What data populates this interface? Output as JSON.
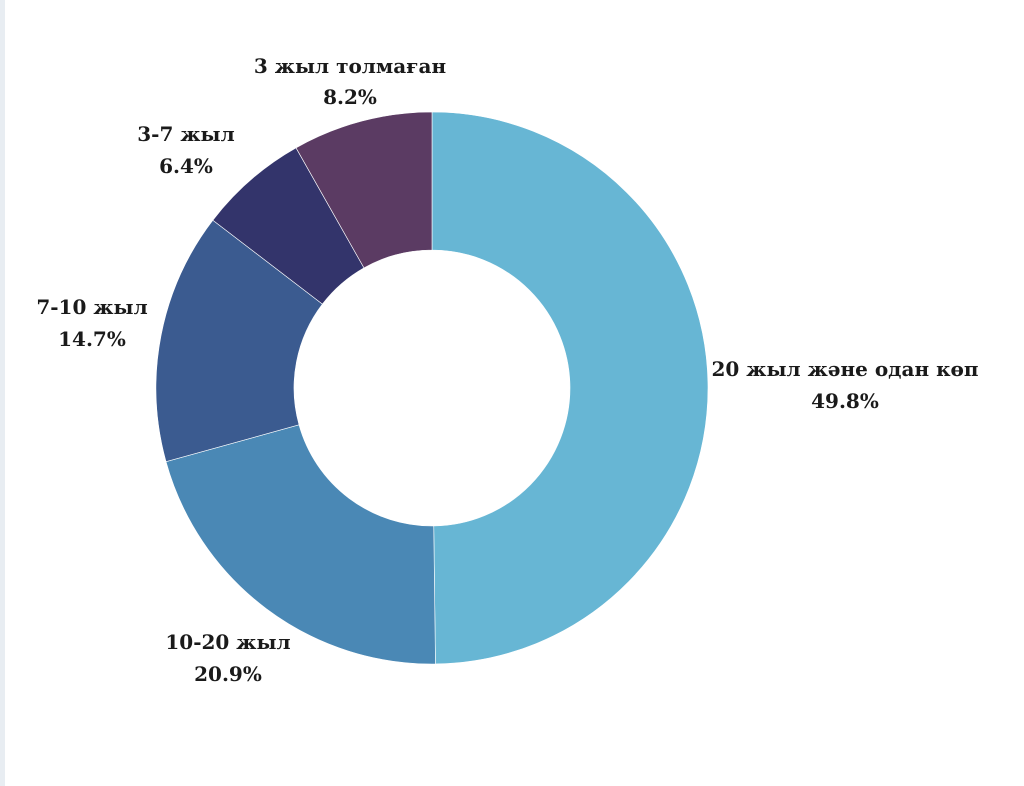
{
  "chart_data": {
    "type": "pie",
    "title": "",
    "slices": [
      {
        "label": "20 жыл және одан көп",
        "value": 49.8,
        "value_label": "49.8%",
        "color": "#67b6d4"
      },
      {
        "label": "10-20 жыл",
        "value": 20.9,
        "value_label": "20.9%",
        "color": "#4a88b5"
      },
      {
        "label": "7-10 жыл",
        "value": 14.7,
        "value_label": "14.7%",
        "color": "#3b5b90"
      },
      {
        "label": "3-7 жыл",
        "value": 6.4,
        "value_label": "6.4%",
        "color": "#33346b"
      },
      {
        "label": "3 жыл толмаған",
        "value": 8.2,
        "value_label": "8.2%",
        "color": "#5b3b63"
      }
    ]
  }
}
